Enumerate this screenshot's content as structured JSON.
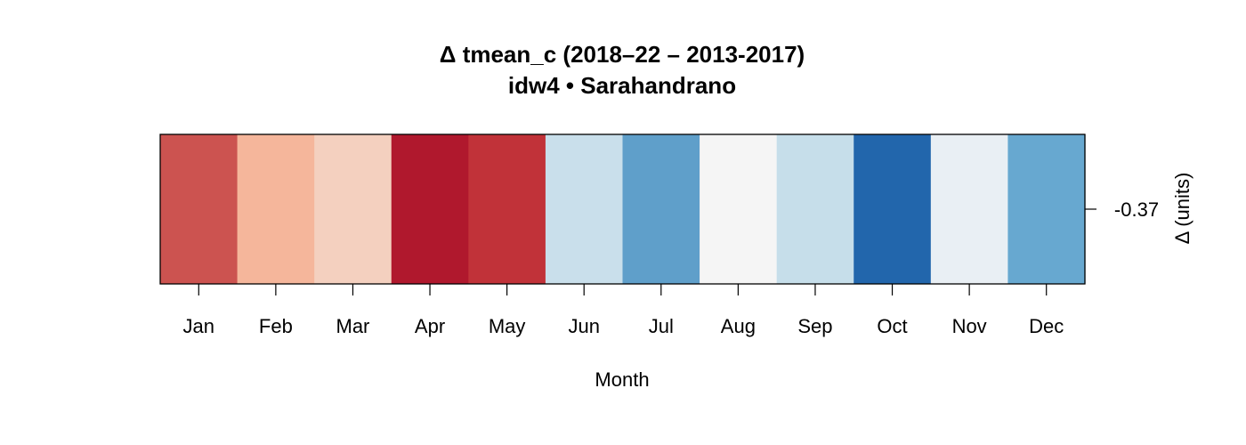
{
  "chart_data": {
    "type": "heatmap",
    "title": "Δ tmean_c (2018–22 – 2013-2017)",
    "subtitle": "idw4 • Sarahandrano",
    "xlabel": "Month",
    "ylabel": "Δ (units)",
    "categories": [
      "Jan",
      "Feb",
      "Mar",
      "Apr",
      "May",
      "Jun",
      "Jul",
      "Aug",
      "Sep",
      "Oct",
      "Nov",
      "Dec"
    ],
    "y_tick_labels": [
      "-0.37"
    ],
    "cell_colors": [
      "#cc5350",
      "#f5b69b",
      "#f4d0bf",
      "#b0182d",
      "#c13239",
      "#c9dfeb",
      "#5f9fca",
      "#f5f5f5",
      "#c6deea",
      "#2266ac",
      "#e9eff4",
      "#67a8d0"
    ],
    "grid": false,
    "legend": "none"
  }
}
